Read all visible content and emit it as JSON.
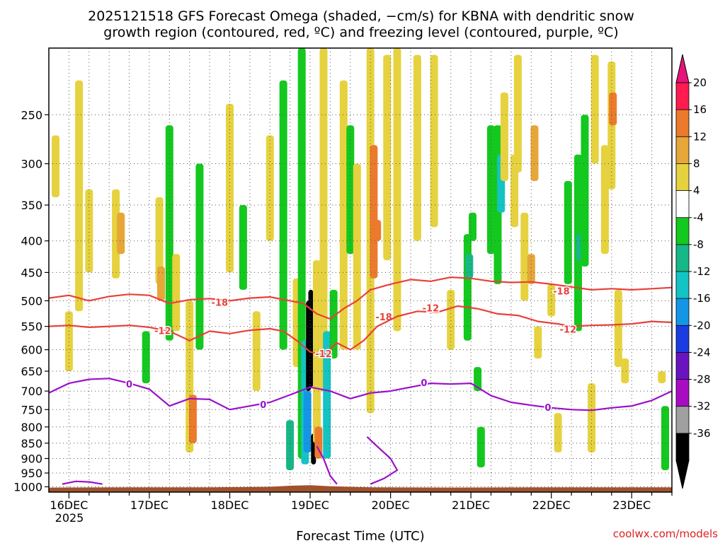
{
  "chart_data": {
    "type": "heatmap",
    "title_line1": "2025121518 GFS Forecast Omega (shaded, −cm/s) for KBNA with dendritic snow",
    "title_line2": "growth region (contoured, red, ºC) and freezing level (contoured, purple, ºC)",
    "xlabel": "Forecast Time (UTC)",
    "ylabel": "",
    "credit": "coolwx.com/models",
    "y_axis": {
      "scale": "log-pressure",
      "range_hpa": [
        1020,
        195
      ],
      "tick_values": [
        250,
        300,
        350,
        400,
        450,
        500,
        550,
        600,
        650,
        700,
        750,
        800,
        850,
        900,
        950,
        1000
      ]
    },
    "x_axis": {
      "range_hours": [
        0,
        186
      ],
      "year_label": "2025",
      "ticks": [
        {
          "label": "16DEC",
          "hour": 6
        },
        {
          "label": "17DEC",
          "hour": 30
        },
        {
          "label": "18DEC",
          "hour": 54
        },
        {
          "label": "19DEC",
          "hour": 78
        },
        {
          "label": "20DEC",
          "hour": 102
        },
        {
          "label": "21DEC",
          "hour": 126
        },
        {
          "label": "22DEC",
          "hour": 150
        },
        {
          "label": "23DEC",
          "hour": 174
        }
      ]
    },
    "colorbar": {
      "labels": [
        "20",
        "16",
        "12",
        "8",
        "4",
        "-4",
        "-8",
        "-12",
        "-16",
        "-20",
        "-24",
        "-28",
        "-32",
        "-36"
      ],
      "colors": [
        "#ff1a50",
        "#ec7a2c",
        "#e6a638",
        "#e6d23e",
        "#ffffff",
        "#13c81e",
        "#16b887",
        "#14c4c4",
        "#1496e6",
        "#1a3ce0",
        "#6a14c0",
        "#a80cc2",
        "#a0a0a0",
        "#000000"
      ],
      "top_arrow_color": "#e6147a",
      "bottom_arrow_color": "#000000"
    },
    "shading_patches": [
      {
        "hour": 2,
        "p_top": 270,
        "p_bot": 340,
        "value": 6
      },
      {
        "hour": 6,
        "p_top": 520,
        "p_bot": 650,
        "value": 5
      },
      {
        "hour": 9,
        "p_top": 220,
        "p_bot": 520,
        "value": 5
      },
      {
        "hour": 12,
        "p_top": 330,
        "p_bot": 450,
        "value": 6
      },
      {
        "hour": 20,
        "p_top": 330,
        "p_bot": 460,
        "value": 6
      },
      {
        "hour": 21.5,
        "p_top": 360,
        "p_bot": 420,
        "value": 9
      },
      {
        "hour": 29,
        "p_top": 560,
        "p_bot": 680,
        "value": -6
      },
      {
        "hour": 33,
        "p_top": 340,
        "p_bot": 470,
        "value": 7
      },
      {
        "hour": 33.5,
        "p_top": 440,
        "p_bot": 500,
        "value": 10
      },
      {
        "hour": 36,
        "p_top": 260,
        "p_bot": 580,
        "value": -6
      },
      {
        "hour": 38,
        "p_top": 420,
        "p_bot": 560,
        "value": 5
      },
      {
        "hour": 42,
        "p_top": 500,
        "p_bot": 880,
        "value": 5
      },
      {
        "hour": 43,
        "p_top": 710,
        "p_bot": 850,
        "value": 14
      },
      {
        "hour": 45,
        "p_top": 300,
        "p_bot": 600,
        "value": -6
      },
      {
        "hour": 54,
        "p_top": 240,
        "p_bot": 450,
        "value": 5
      },
      {
        "hour": 58,
        "p_top": 350,
        "p_bot": 480,
        "value": -6
      },
      {
        "hour": 62,
        "p_top": 520,
        "p_bot": 700,
        "value": 5
      },
      {
        "hour": 66,
        "p_top": 270,
        "p_bot": 400,
        "value": 5
      },
      {
        "hour": 70,
        "p_top": 220,
        "p_bot": 600,
        "value": -6
      },
      {
        "hour": 72,
        "p_top": 780,
        "p_bot": 940,
        "value": -8
      },
      {
        "hour": 74,
        "p_top": 460,
        "p_bot": 640,
        "value": 5
      },
      {
        "hour": 75.5,
        "p_top": 195,
        "p_bot": 900,
        "value": -7
      },
      {
        "hour": 76.5,
        "p_top": 580,
        "p_bot": 920,
        "value": -14
      },
      {
        "hour": 77.5,
        "p_top": 500,
        "p_bot": 700,
        "value": -40
      },
      {
        "hour": 78.2,
        "p_top": 480,
        "p_bot": 690,
        "value": -40
      },
      {
        "hour": 77.2,
        "p_top": 700,
        "p_bot": 880,
        "value": -18
      },
      {
        "hour": 79,
        "p_top": 820,
        "p_bot": 920,
        "value": -40
      },
      {
        "hour": 80,
        "p_top": 430,
        "p_bot": 850,
        "value": 7
      },
      {
        "hour": 80.5,
        "p_top": 800,
        "p_bot": 900,
        "value": 12
      },
      {
        "hour": 82,
        "p_top": 195,
        "p_bot": 700,
        "value": 5
      },
      {
        "hour": 83,
        "p_top": 560,
        "p_bot": 900,
        "value": -12
      },
      {
        "hour": 85,
        "p_top": 480,
        "p_bot": 620,
        "value": -7
      },
      {
        "hour": 88,
        "p_top": 220,
        "p_bot": 600,
        "value": 6
      },
      {
        "hour": 90,
        "p_top": 260,
        "p_bot": 420,
        "value": -6
      },
      {
        "hour": 92,
        "p_top": 300,
        "p_bot": 600,
        "value": 6
      },
      {
        "hour": 96,
        "p_top": 195,
        "p_bot": 760,
        "value": 6
      },
      {
        "hour": 97,
        "p_top": 280,
        "p_bot": 460,
        "value": 13
      },
      {
        "hour": 98,
        "p_top": 370,
        "p_bot": 400,
        "value": 18
      },
      {
        "hour": 101,
        "p_top": 200,
        "p_bot": 430,
        "value": 5
      },
      {
        "hour": 104,
        "p_top": 195,
        "p_bot": 560,
        "value": 6
      },
      {
        "hour": 110,
        "p_top": 200,
        "p_bot": 400,
        "value": 5
      },
      {
        "hour": 115,
        "p_top": 200,
        "p_bot": 380,
        "value": 5
      },
      {
        "hour": 120,
        "p_top": 480,
        "p_bot": 600,
        "value": 5
      },
      {
        "hour": 125,
        "p_top": 390,
        "p_bot": 580,
        "value": -6
      },
      {
        "hour": 125.5,
        "p_top": 420,
        "p_bot": 460,
        "value": -10
      },
      {
        "hour": 126.5,
        "p_top": 360,
        "p_bot": 400,
        "value": -6
      },
      {
        "hour": 128,
        "p_top": 640,
        "p_bot": 700,
        "value": -7
      },
      {
        "hour": 129,
        "p_top": 800,
        "p_bot": 930,
        "value": -6
      },
      {
        "hour": 132,
        "p_top": 260,
        "p_bot": 420,
        "value": -7
      },
      {
        "hour": 134,
        "p_top": 260,
        "p_bot": 470,
        "value": -7
      },
      {
        "hour": 135,
        "p_top": 290,
        "p_bot": 360,
        "value": -12
      },
      {
        "hour": 136,
        "p_top": 230,
        "p_bot": 320,
        "value": 6
      },
      {
        "hour": 139,
        "p_top": 290,
        "p_bot": 380,
        "value": 7
      },
      {
        "hour": 140,
        "p_top": 200,
        "p_bot": 310,
        "value": 7
      },
      {
        "hour": 142,
        "p_top": 360,
        "p_bot": 500,
        "value": 6
      },
      {
        "hour": 144,
        "p_top": 420,
        "p_bot": 470,
        "value": 10
      },
      {
        "hour": 145,
        "p_top": 260,
        "p_bot": 320,
        "value": 10
      },
      {
        "hour": 146,
        "p_top": 550,
        "p_bot": 620,
        "value": 5
      },
      {
        "hour": 150,
        "p_top": 470,
        "p_bot": 530,
        "value": 5
      },
      {
        "hour": 152,
        "p_top": 760,
        "p_bot": 880,
        "value": 6
      },
      {
        "hour": 155,
        "p_top": 320,
        "p_bot": 470,
        "value": -7
      },
      {
        "hour": 158,
        "p_top": 290,
        "p_bot": 560,
        "value": -7
      },
      {
        "hour": 158.5,
        "p_top": 390,
        "p_bot": 430,
        "value": -10
      },
      {
        "hour": 160,
        "p_top": 250,
        "p_bot": 440,
        "value": -7
      },
      {
        "hour": 162,
        "p_top": 680,
        "p_bot": 880,
        "value": 5
      },
      {
        "hour": 163,
        "p_top": 200,
        "p_bot": 300,
        "value": 5
      },
      {
        "hour": 166,
        "p_top": 280,
        "p_bot": 420,
        "value": 6
      },
      {
        "hour": 168,
        "p_top": 205,
        "p_bot": 330,
        "value": 6
      },
      {
        "hour": 168.4,
        "p_top": 230,
        "p_bot": 260,
        "value": 13
      },
      {
        "hour": 170,
        "p_top": 480,
        "p_bot": 640,
        "value": 6
      },
      {
        "hour": 172,
        "p_top": 620,
        "p_bot": 680,
        "value": 5
      },
      {
        "hour": 183,
        "p_top": 650,
        "p_bot": 680,
        "value": 5
      },
      {
        "hour": 184,
        "p_top": 740,
        "p_bot": 940,
        "value": -7
      }
    ],
    "contours": {
      "red": [
        {
          "label": "-18",
          "label_at": [
            [
              51,
              504
            ],
            [
              100,
              532
            ],
            [
              153,
              483
            ]
          ],
          "points": [
            [
              0,
              495
            ],
            [
              6,
              490
            ],
            [
              12,
              500
            ],
            [
              18,
              492
            ],
            [
              24,
              488
            ],
            [
              30,
              490
            ],
            [
              36,
              505
            ],
            [
              42,
              498
            ],
            [
              48,
              496
            ],
            [
              54,
              500
            ],
            [
              60,
              495
            ],
            [
              66,
              493
            ],
            [
              72,
              500
            ],
            [
              76,
              505
            ],
            [
              80,
              525
            ],
            [
              84,
              535
            ],
            [
              88,
              515
            ],
            [
              92,
              500
            ],
            [
              96,
              480
            ],
            [
              102,
              470
            ],
            [
              108,
              462
            ],
            [
              114,
              465
            ],
            [
              120,
              458
            ],
            [
              126,
              460
            ],
            [
              132,
              465
            ],
            [
              138,
              467
            ],
            [
              144,
              466
            ],
            [
              150,
              470
            ],
            [
              156,
              475
            ],
            [
              162,
              480
            ],
            [
              168,
              478
            ],
            [
              174,
              480
            ],
            [
              180,
              478
            ],
            [
              186,
              476
            ]
          ]
        },
        {
          "label": "-12",
          "label_at": [
            [
              34,
              560
            ],
            [
              82,
              610
            ],
            [
              114,
              515
            ],
            [
              155,
              557
            ]
          ],
          "points": [
            [
              0,
              550
            ],
            [
              6,
              548
            ],
            [
              12,
              552
            ],
            [
              18,
              550
            ],
            [
              24,
              548
            ],
            [
              30,
              552
            ],
            [
              36,
              560
            ],
            [
              42,
              580
            ],
            [
              48,
              560
            ],
            [
              54,
              565
            ],
            [
              60,
              558
            ],
            [
              66,
              555
            ],
            [
              70,
              560
            ],
            [
              74,
              580
            ],
            [
              78,
              605
            ],
            [
              82,
              612
            ],
            [
              86,
              585
            ],
            [
              90,
              600
            ],
            [
              94,
              580
            ],
            [
              98,
              550
            ],
            [
              104,
              530
            ],
            [
              110,
              520
            ],
            [
              116,
              522
            ],
            [
              122,
              510
            ],
            [
              128,
              515
            ],
            [
              134,
              525
            ],
            [
              140,
              528
            ],
            [
              146,
              540
            ],
            [
              152,
              545
            ],
            [
              156,
              550
            ],
            [
              162,
              548
            ],
            [
              168,
              547
            ],
            [
              174,
              545
            ],
            [
              180,
              540
            ],
            [
              186,
              542
            ]
          ]
        }
      ],
      "purple": [
        {
          "label": "0",
          "label_at": [
            [
              24,
              683
            ],
            [
              64,
              738
            ],
            [
              112,
              680
            ],
            [
              149,
              745
            ]
          ],
          "points": [
            [
              0,
              705
            ],
            [
              6,
              680
            ],
            [
              12,
              670
            ],
            [
              18,
              668
            ],
            [
              24,
              680
            ],
            [
              30,
              695
            ],
            [
              36,
              740
            ],
            [
              42,
              720
            ],
            [
              48,
              722
            ],
            [
              54,
              750
            ],
            [
              60,
              740
            ],
            [
              66,
              730
            ],
            [
              72,
              710
            ],
            [
              78,
              690
            ],
            [
              84,
              700
            ],
            [
              90,
              720
            ],
            [
              96,
              705
            ],
            [
              102,
              700
            ],
            [
              108,
              690
            ],
            [
              114,
              680
            ],
            [
              120,
              682
            ],
            [
              126,
              680
            ],
            [
              132,
              712
            ],
            [
              138,
              730
            ],
            [
              144,
              738
            ],
            [
              150,
              745
            ],
            [
              156,
              750
            ],
            [
              162,
              752
            ],
            [
              168,
              745
            ],
            [
              174,
              740
            ],
            [
              180,
              725
            ],
            [
              186,
              700
            ]
          ]
        },
        {
          "label": "",
          "label_at": [],
          "points": [
            [
              80,
              860
            ],
            [
              82,
              900
            ],
            [
              84,
              960
            ],
            [
              86,
              990
            ]
          ]
        },
        {
          "label": "",
          "label_at": [],
          "points": [
            [
              95,
              830
            ],
            [
              97,
              850
            ],
            [
              99,
              870
            ],
            [
              102,
              900
            ],
            [
              104,
              940
            ],
            [
              100,
              970
            ],
            [
              96,
              990
            ]
          ]
        },
        {
          "label": "",
          "label_at": [],
          "points": [
            [
              4,
              990
            ],
            [
              8,
              980
            ],
            [
              12,
              982
            ],
            [
              16,
              990
            ]
          ]
        }
      ]
    },
    "terrain": {
      "color": "#a0522d",
      "surface_pressure": [
        [
          0,
          1003
        ],
        [
          24,
          1002
        ],
        [
          48,
          1002
        ],
        [
          66,
          1000
        ],
        [
          72,
          996
        ],
        [
          78,
          994
        ],
        [
          84,
          998
        ],
        [
          96,
          1002
        ],
        [
          120,
          1003
        ],
        [
          150,
          1002
        ],
        [
          186,
          1002
        ]
      ]
    }
  }
}
